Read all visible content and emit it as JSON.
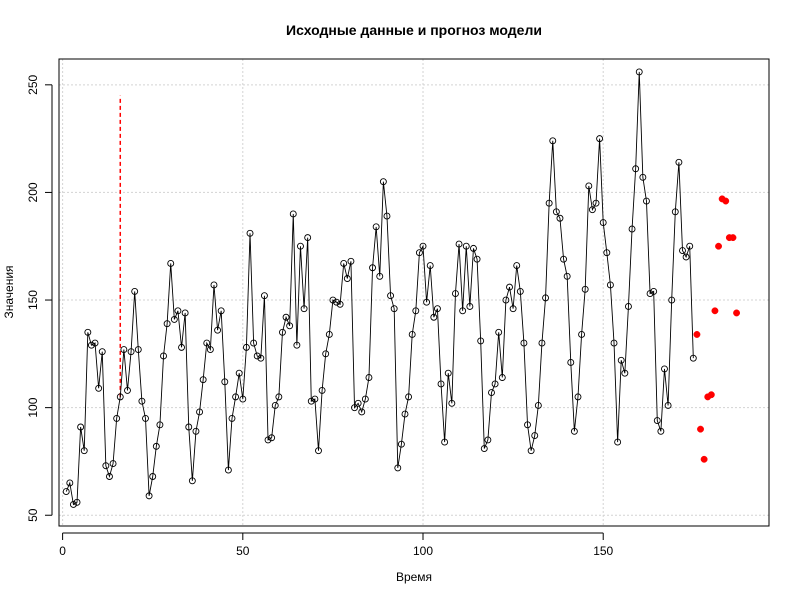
{
  "chart_data": {
    "type": "line",
    "title": "Исходные данные и прогноз модели",
    "xlabel": "Время",
    "ylabel": "Значения",
    "xlim": [
      -1,
      196
    ],
    "ylim": [
      45,
      262
    ],
    "xticks": [
      0,
      50,
      100,
      150
    ],
    "yticks": [
      50,
      100,
      150,
      200,
      250
    ],
    "grid": true,
    "colors": {
      "observed": "#000000",
      "forecast": "#ff0000",
      "grid": "#d3d3d3"
    },
    "series": [
      {
        "x_start": 1,
        "values": [
          61,
          65,
          55,
          56,
          91,
          80,
          135,
          129,
          130,
          109,
          126,
          73,
          68,
          74,
          95,
          105,
          127,
          108,
          126,
          154,
          127,
          103,
          95,
          59,
          68,
          82,
          92,
          124,
          139,
          167,
          141,
          145,
          128,
          144,
          91,
          66,
          89,
          98,
          113,
          130,
          127,
          157,
          136,
          145,
          112,
          71,
          95,
          105,
          116,
          104,
          128,
          181,
          130,
          124,
          123,
          152,
          85,
          86,
          101,
          105,
          135,
          142,
          138,
          190,
          129,
          175,
          146,
          179,
          103,
          104,
          80,
          108,
          125,
          134,
          150,
          149,
          148,
          167,
          160,
          168,
          100,
          102,
          98,
          104,
          114,
          165,
          184,
          161,
          205,
          189,
          152,
          146,
          72,
          83,
          97,
          105,
          134,
          145,
          172,
          175,
          149,
          166,
          142,
          146,
          111,
          84,
          116,
          102,
          153,
          176,
          145,
          175,
          147,
          174,
          169,
          131,
          81,
          85,
          107,
          111,
          135,
          114,
          150,
          156,
          146,
          166,
          154,
          130,
          92,
          80,
          87,
          101,
          130,
          151,
          195,
          224,
          191,
          188,
          169,
          161,
          121,
          89,
          105,
          134,
          155,
          203,
          192,
          195,
          225,
          186,
          172,
          157,
          130,
          84,
          122,
          116,
          147,
          183,
          211,
          256,
          207,
          196,
          153,
          154,
          94,
          89,
          118,
          101,
          150,
          191,
          214,
          173,
          170,
          175,
          123
        ]
      },
      {
        "x_start": 176,
        "values": [
          134,
          90,
          76,
          105,
          106,
          145,
          175,
          197,
          196,
          179,
          179,
          144
        ]
      }
    ],
    "vertical_line": {
      "x": 16,
      "y_start": 105,
      "y_end": 245,
      "style": "dashed"
    }
  }
}
